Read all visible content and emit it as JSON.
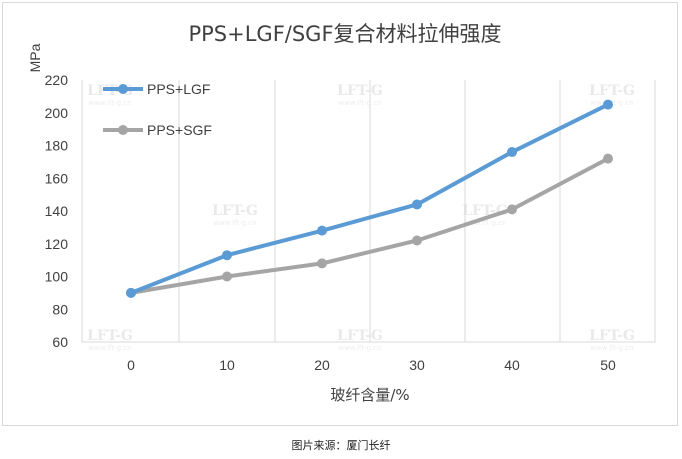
{
  "chart_data": {
    "type": "line",
    "title": "PPS+LGF/SGF复合材料拉伸强度",
    "xlabel": "玻纤含量/%",
    "ylabel": "MPa",
    "x": [
      0,
      10,
      20,
      30,
      40,
      50
    ],
    "xticks": [
      "0",
      "10",
      "20",
      "30",
      "40",
      "50"
    ],
    "ylim": [
      60,
      220
    ],
    "yticks": [
      "60",
      "80",
      "100",
      "120",
      "140",
      "160",
      "180",
      "200",
      "220"
    ],
    "grid": "vertical",
    "legend_position": "top-left",
    "series": [
      {
        "name": "PPS+LGF",
        "values": [
          90,
          113,
          128,
          144,
          176,
          205
        ],
        "color": "#5b9bd5"
      },
      {
        "name": "PPS+SGF",
        "values": [
          90,
          100,
          108,
          122,
          141,
          172
        ],
        "color": "#a5a5a5"
      }
    ],
    "watermark": {
      "logo": "LFT-G",
      "url": "www.lft-g.cn"
    }
  },
  "caption": "图片来源：厦门长纤"
}
